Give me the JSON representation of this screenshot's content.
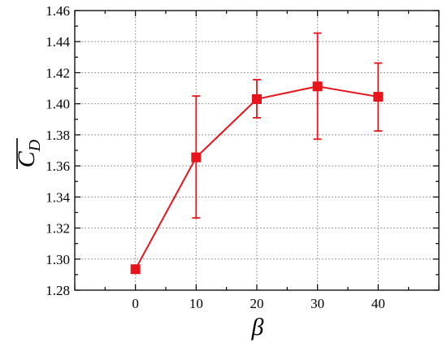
{
  "chart_data": {
    "type": "line",
    "title": "",
    "xlabel": "β",
    "ylabel": "C",
    "ylabel_subscript": "D",
    "x": [
      0,
      10,
      20,
      30,
      40
    ],
    "series": [
      {
        "values": [
          1.2935,
          1.3655,
          1.403,
          1.4112,
          1.4045
        ],
        "error_lower": [
          1.2935,
          1.3265,
          1.391,
          1.3772,
          1.3825
        ],
        "error_upper": [
          1.2935,
          1.405,
          1.4155,
          1.4455,
          1.4262
        ],
        "color": "#e8141b",
        "marker": "square"
      }
    ],
    "xlim": [
      -10,
      50
    ],
    "ylim": [
      1.28,
      1.46
    ],
    "xticks": [
      0,
      10,
      20,
      30,
      40
    ],
    "yticks": [
      1.28,
      1.3,
      1.32,
      1.34,
      1.36,
      1.38,
      1.4,
      1.42,
      1.44,
      1.46
    ],
    "xtick_labels": [
      "0",
      "10",
      "20",
      "30",
      "40"
    ],
    "ytick_labels": [
      "1.28",
      "1.30",
      "1.32",
      "1.34",
      "1.36",
      "1.38",
      "1.40",
      "1.42",
      "1.44",
      "1.46"
    ],
    "grid": true,
    "legend": "none"
  }
}
